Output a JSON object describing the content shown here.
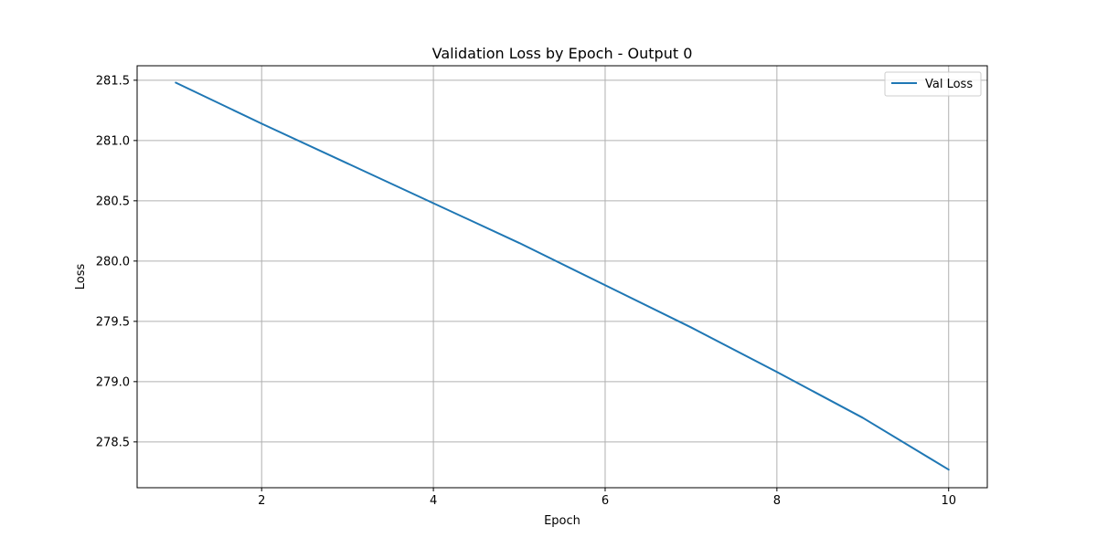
{
  "chart_data": {
    "type": "line",
    "title": "Validation Loss by Epoch - Output 0",
    "xlabel": "Epoch",
    "ylabel": "Loss",
    "xlim": [
      0.55,
      10.45
    ],
    "ylim": [
      278.12,
      281.62
    ],
    "xticks": [
      2,
      4,
      6,
      8,
      10
    ],
    "yticks": [
      278.5,
      279.0,
      279.5,
      280.0,
      280.5,
      281.0,
      281.5
    ],
    "grid": true,
    "legend_position": "top-right",
    "series": [
      {
        "name": "Val Loss",
        "color": "#1f77b4",
        "x": [
          1,
          2,
          3,
          4,
          5,
          6,
          7,
          8,
          9,
          10
        ],
        "y": [
          281.48,
          281.14,
          280.81,
          280.48,
          280.15,
          279.8,
          279.45,
          279.08,
          278.7,
          278.27
        ]
      }
    ]
  }
}
